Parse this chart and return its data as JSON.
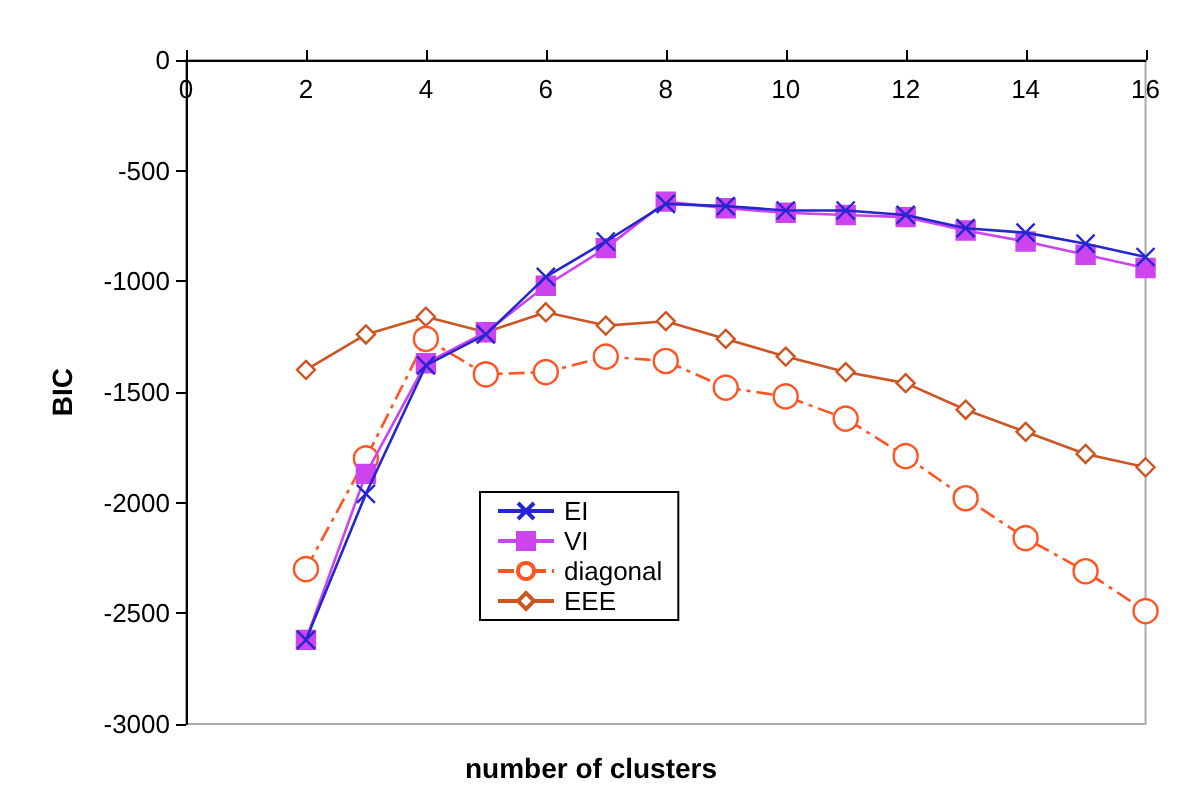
{
  "chart_data": {
    "type": "line",
    "xlabel": "number of clusters",
    "ylabel": "BIC",
    "xlim": [
      0,
      16
    ],
    "xticks": [
      0,
      2,
      4,
      6,
      8,
      10,
      12,
      14,
      16
    ],
    "ylim": [
      -3000,
      0
    ],
    "yticks": [
      -3000,
      -2500,
      -2000,
      -1500,
      -1000,
      -500,
      0
    ],
    "x": [
      2,
      3,
      4,
      5,
      6,
      7,
      8,
      9,
      10,
      11,
      12,
      13,
      14,
      15,
      16
    ],
    "grid": false,
    "legend": "bottom",
    "series": [
      {
        "name": "EI",
        "color": "#2626d0",
        "marker": "cross",
        "line_style": "solid",
        "values": [
          -2620,
          -1960,
          -1380,
          -1240,
          -980,
          -820,
          -650,
          -660,
          -680,
          -680,
          -700,
          -760,
          -780,
          -830,
          -890
        ]
      },
      {
        "name": "VI",
        "color": "#cc44ee",
        "marker": "square",
        "line_style": "solid",
        "values": [
          -2620,
          -1870,
          -1370,
          -1230,
          -1020,
          -850,
          -640,
          -670,
          -690,
          -700,
          -710,
          -770,
          -820,
          -880,
          -940
        ]
      },
      {
        "name": "diagonal",
        "color": "#ff5522",
        "marker": "circle",
        "line_style": "dashdot",
        "values": [
          -2300,
          -1800,
          -1260,
          -1420,
          -1410,
          -1340,
          -1360,
          -1480,
          -1520,
          -1620,
          -1790,
          -1980,
          -2160,
          -2310,
          -2490
        ]
      },
      {
        "name": "EEE",
        "color": "#cc5522",
        "marker": "diamond",
        "line_style": "solid",
        "values": [
          -1400,
          -1240,
          -1160,
          -1230,
          -1140,
          -1200,
          -1180,
          -1260,
          -1340,
          -1410,
          -1460,
          -1580,
          -1680,
          -1780,
          -1840
        ]
      }
    ]
  }
}
